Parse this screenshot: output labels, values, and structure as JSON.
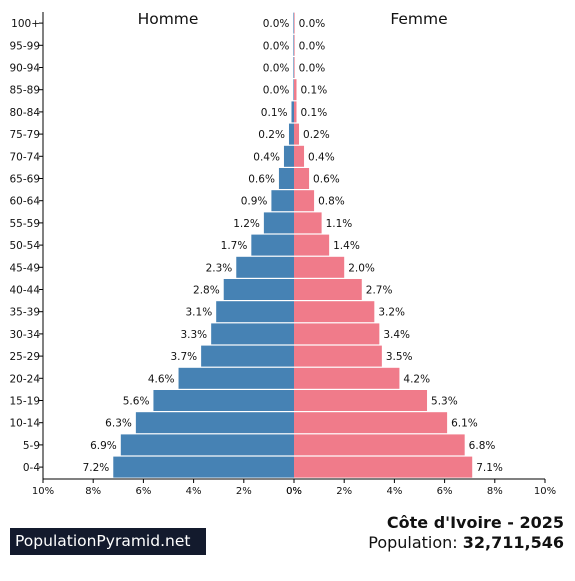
{
  "chart_data": {
    "type": "bar",
    "orientation": "horizontal-population-pyramid",
    "categories": [
      "100+",
      "95-99",
      "90-94",
      "85-89",
      "80-84",
      "75-79",
      "70-74",
      "65-69",
      "60-64",
      "55-59",
      "50-54",
      "45-49",
      "40-44",
      "35-39",
      "30-34",
      "25-29",
      "20-24",
      "15-19",
      "10-14",
      "5-9",
      "0-4"
    ],
    "series": [
      {
        "name": "Homme",
        "color": "#4682b4",
        "values": [
          0.0,
          0.0,
          0.0,
          0.0,
          0.1,
          0.2,
          0.4,
          0.6,
          0.9,
          1.2,
          1.7,
          2.3,
          2.8,
          3.1,
          3.3,
          3.7,
          4.6,
          5.6,
          6.3,
          6.9,
          7.2
        ],
        "labels": [
          "0.0%",
          "0.0%",
          "0.0%",
          "0.0%",
          "0.1%",
          "0.2%",
          "0.4%",
          "0.6%",
          "0.9%",
          "1.2%",
          "1.7%",
          "2.3%",
          "2.8%",
          "3.1%",
          "3.3%",
          "3.7%",
          "4.6%",
          "5.6%",
          "6.3%",
          "6.9%",
          "7.2%"
        ]
      },
      {
        "name": "Femme",
        "color": "#f07b8a",
        "values": [
          0.0,
          0.0,
          0.0,
          0.1,
          0.1,
          0.2,
          0.4,
          0.6,
          0.8,
          1.1,
          1.4,
          2.0,
          2.7,
          3.2,
          3.4,
          3.5,
          4.2,
          5.3,
          6.1,
          6.8,
          7.1
        ],
        "labels": [
          "0.0%",
          "0.0%",
          "0.0%",
          "0.1%",
          "0.1%",
          "0.2%",
          "0.4%",
          "0.6%",
          "0.8%",
          "1.1%",
          "1.4%",
          "2.0%",
          "2.7%",
          "3.2%",
          "3.4%",
          "3.5%",
          "4.2%",
          "5.3%",
          "6.1%",
          "6.8%",
          "7.1%"
        ]
      }
    ],
    "xlim": [
      0,
      10
    ],
    "x_ticks_left": [
      "10%",
      "8%",
      "6%",
      "4%",
      "2%",
      "0%"
    ],
    "x_ticks_right": [
      "0%",
      "2%",
      "4%",
      "6%",
      "8%",
      "10%"
    ],
    "xlabel": "",
    "ylabel": "",
    "grid": false,
    "legend": "series names at top-left and top-right"
  },
  "footer": {
    "brand": "PopulationPyramid.net",
    "country_year": "Côte d'Ivoire - 2025",
    "population_label": "Population:",
    "population_value": "32,711,546"
  }
}
